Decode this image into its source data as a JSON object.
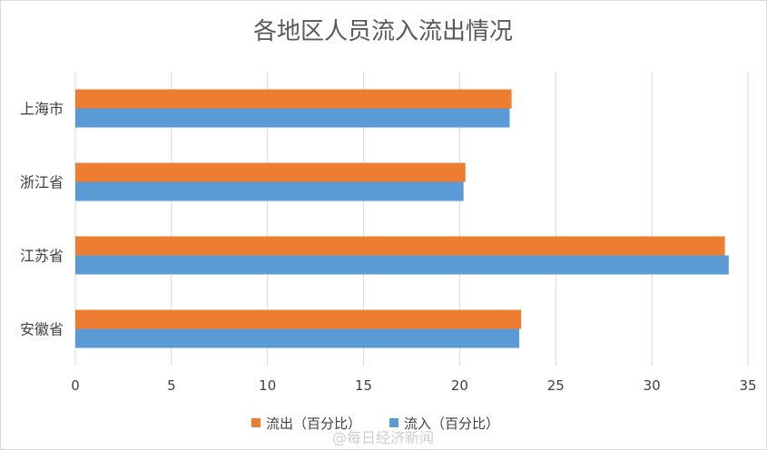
{
  "chart_data": {
    "type": "bar",
    "orientation": "horizontal",
    "title": "各地区人员流入流出情况",
    "categories": [
      "上海市",
      "浙江省",
      "江苏省",
      "安徽省"
    ],
    "series": [
      {
        "name": "流出（百分比）",
        "color": "#ED7D31",
        "values": [
          22.7,
          20.3,
          33.8,
          23.2
        ]
      },
      {
        "name": "流入（百分比）",
        "color": "#5B9BD5",
        "values": [
          22.6,
          20.2,
          34.0,
          23.1
        ]
      }
    ],
    "xlim": [
      0,
      35
    ],
    "xticks": [
      "0",
      "5",
      "10",
      "15",
      "20",
      "25",
      "30",
      "35"
    ],
    "grid": true,
    "legend_position": "bottom"
  },
  "watermark": "@每日经济新闻"
}
